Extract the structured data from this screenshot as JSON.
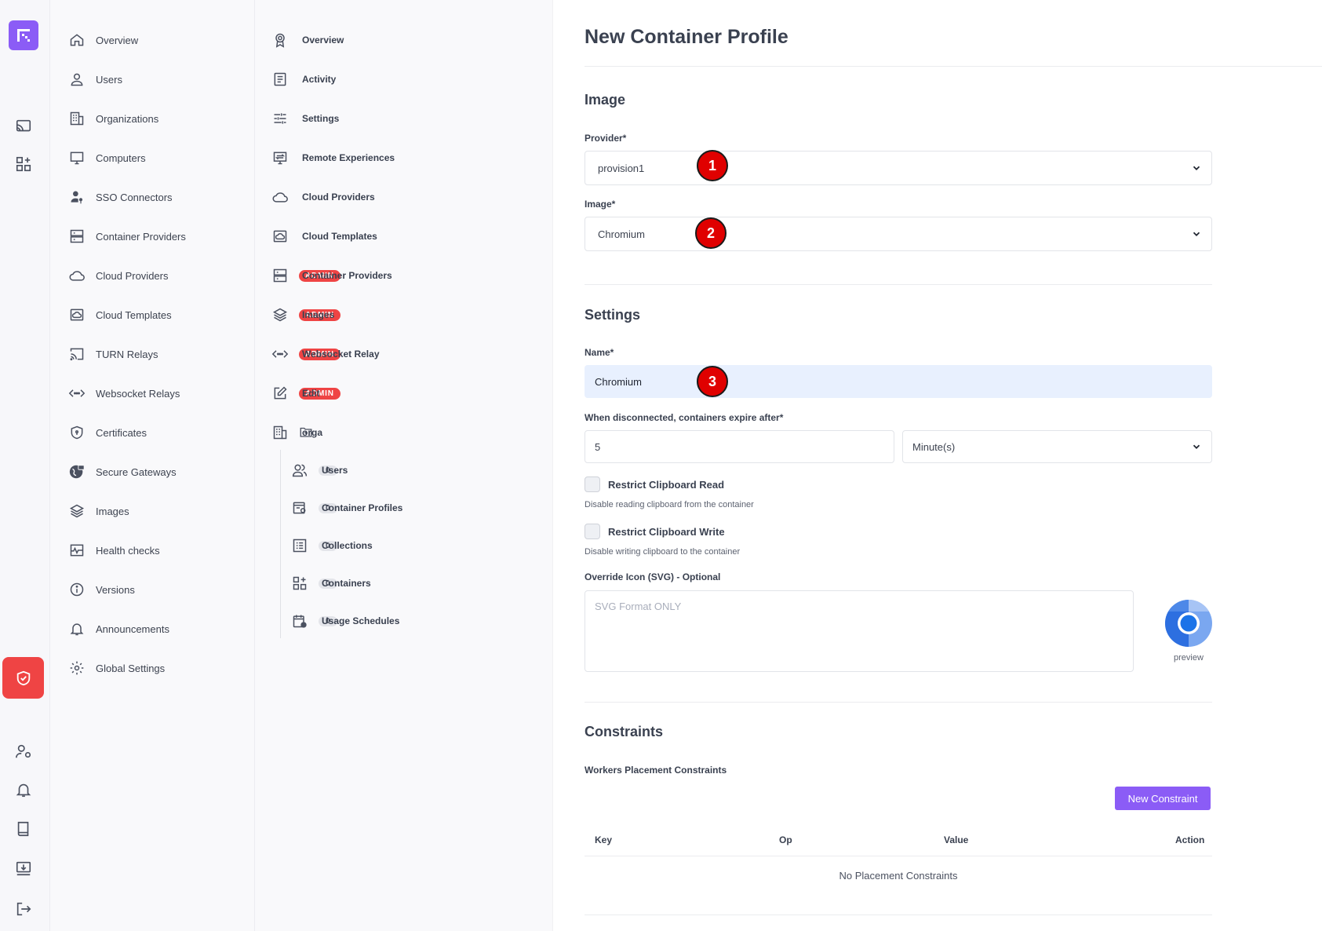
{
  "sidebar_primary": [
    {
      "label": "Overview",
      "icon": "home-icon"
    },
    {
      "label": "Users",
      "icon": "user-icon"
    },
    {
      "label": "Organizations",
      "icon": "building-icon"
    },
    {
      "label": "Computers",
      "icon": "monitor-icon"
    },
    {
      "label": "SSO Connectors",
      "icon": "user-key-icon"
    },
    {
      "label": "Container Providers",
      "icon": "server-icon"
    },
    {
      "label": "Cloud Providers",
      "icon": "cloud-icon"
    },
    {
      "label": "Cloud Templates",
      "icon": "cloud-template-icon"
    },
    {
      "label": "TURN Relays",
      "icon": "cast-icon"
    },
    {
      "label": "Websocket Relays",
      "icon": "code-arrows-icon"
    },
    {
      "label": "Certificates",
      "icon": "shield-icon"
    },
    {
      "label": "Secure Gateways",
      "icon": "globe-lock-icon"
    },
    {
      "label": "Images",
      "icon": "layers-icon"
    },
    {
      "label": "Health checks",
      "icon": "pulse-icon"
    },
    {
      "label": "Versions",
      "icon": "info-icon"
    },
    {
      "label": "Announcements",
      "icon": "bell-icon"
    },
    {
      "label": "Global Settings",
      "icon": "gear-icon"
    }
  ],
  "sidebar_secondary": [
    {
      "label": "Overview",
      "icon": "award-icon",
      "badge": ""
    },
    {
      "label": "Activity",
      "icon": "document-icon",
      "badge": ""
    },
    {
      "label": "Settings",
      "icon": "sliders-icon",
      "badge": ""
    },
    {
      "label": "Remote Experiences",
      "icon": "remote-screen-icon",
      "badge": ""
    },
    {
      "label": "Cloud Providers",
      "icon": "cloud-icon",
      "badge": ""
    },
    {
      "label": "Cloud Templates",
      "icon": "cloud-template-icon",
      "badge": ""
    },
    {
      "label": "Container Providers",
      "icon": "server-icon",
      "badge": "ADMIN"
    },
    {
      "label": "Images",
      "icon": "layers-icon",
      "badge": "ADMIN"
    },
    {
      "label": "Websocket Relay",
      "icon": "code-arrows-icon",
      "badge": "ADMIN"
    },
    {
      "label": "Edit",
      "icon": "edit-icon",
      "badge": "ADMIN"
    }
  ],
  "org": {
    "label": "orga",
    "children": [
      {
        "label": "Users",
        "icon": "users-icon",
        "count": "0"
      },
      {
        "label": "Container Profiles",
        "icon": "container-profile-icon",
        "count": "0"
      },
      {
        "label": "Collections",
        "icon": "list-icon",
        "count": "0"
      },
      {
        "label": "Containers",
        "icon": "grid-plus-icon",
        "count": "0"
      },
      {
        "label": "Usage Schedules",
        "icon": "calendar-clock-icon",
        "count": "0"
      }
    ]
  },
  "main": {
    "title": "New Container Profile",
    "image_section": {
      "heading": "Image",
      "provider_label": "Provider*",
      "provider_value": "provision1",
      "image_label": "Image*",
      "image_value": "Chromium"
    },
    "settings_section": {
      "heading": "Settings",
      "name_label": "Name*",
      "name_value": "Chromium",
      "expire_label": "When disconnected, containers expire after*",
      "expire_value": "5",
      "expire_unit": "Minute(s)",
      "clip_read_label": "Restrict Clipboard Read",
      "clip_read_help": "Disable reading clipboard from the container",
      "clip_write_label": "Restrict Clipboard Write",
      "clip_write_help": "Disable writing clipboard to the container",
      "icon_label": "Override Icon (SVG) - Optional",
      "icon_placeholder": "SVG Format ONLY",
      "preview_label": "preview"
    },
    "constraints_section": {
      "heading": "Constraints",
      "sub_heading": "Workers Placement Constraints",
      "new_button": "New Constraint",
      "columns": [
        "Key",
        "Op",
        "Value",
        "Action"
      ],
      "empty_text": "No Placement Constraints"
    },
    "markers": [
      "1",
      "2",
      "3"
    ]
  },
  "colors": {
    "accent": "#8b5cf6",
    "danger": "#ef4444",
    "marker": "#e00000"
  }
}
